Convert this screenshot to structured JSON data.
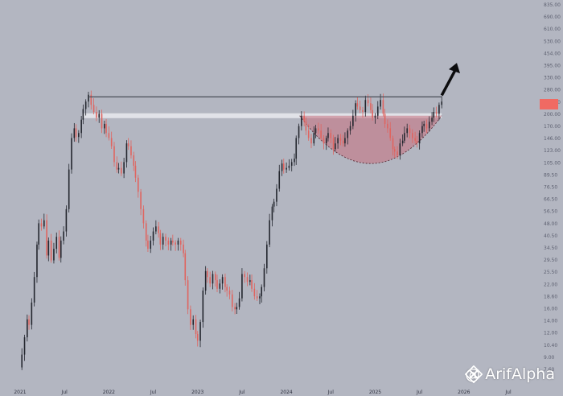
{
  "chart_data": {
    "type": "candlestick",
    "y_scale": "log",
    "ylim": [
      7.6,
      835.0
    ],
    "y_ticks": [
      "835.00",
      "690.00",
      "610.00",
      "530.00",
      "454.00",
      "395.00",
      "330.00",
      "280.00",
      "235.00",
      "200.00",
      "170.00",
      "146.00",
      "123.00",
      "105.00",
      "89.50",
      "76.50",
      "66.50",
      "56.50",
      "48.00",
      "40.50",
      "34.50",
      "29.50",
      "25.50",
      "22.00",
      "18.60",
      "16.00",
      "14.00",
      "12.00",
      "10.40",
      "9.00",
      "7.60"
    ],
    "x_ticks": [
      "2021",
      "Jul",
      "2022",
      "Jul",
      "2023",
      "Jul",
      "2024",
      "Jul",
      "2025",
      "Jul",
      "2026",
      "Jul"
    ],
    "x_tick_dates": [
      2021.0,
      2021.5,
      2022.0,
      2022.5,
      2023.0,
      2023.5,
      2024.0,
      2024.5,
      2025.0,
      2025.5,
      2026.0,
      2026.5
    ],
    "current_price_tag": "",
    "resistance": {
      "value": 255.0,
      "from": 2021.78,
      "to": 2025.75
    },
    "support_zone": {
      "value": 200.0,
      "from": 2021.7,
      "to": 2025.75
    },
    "cup": {
      "from": 2024.15,
      "to": 2025.75,
      "top": 200.0,
      "bottom": 108.0
    },
    "arrow": {
      "from_date": 2025.75,
      "from_value": 260.0,
      "to_date": 2025.92,
      "to_value": 395.0
    },
    "price_path": [
      [
        2021.0,
        7.8
      ],
      [
        2021.02,
        9.2
      ],
      [
        2021.05,
        11.5
      ],
      [
        2021.08,
        14.5
      ],
      [
        2021.1,
        13.5
      ],
      [
        2021.13,
        18.0
      ],
      [
        2021.16,
        25.0
      ],
      [
        2021.19,
        38.0
      ],
      [
        2021.21,
        50.0
      ],
      [
        2021.24,
        48.0
      ],
      [
        2021.27,
        52.0
      ],
      [
        2021.3,
        33.0
      ],
      [
        2021.32,
        40.0
      ],
      [
        2021.35,
        31.0
      ],
      [
        2021.38,
        36.0
      ],
      [
        2021.41,
        42.0
      ],
      [
        2021.44,
        32.0
      ],
      [
        2021.46,
        40.0
      ],
      [
        2021.49,
        45.0
      ],
      [
        2021.52,
        60.0
      ],
      [
        2021.55,
        100.0
      ],
      [
        2021.58,
        150.0
      ],
      [
        2021.61,
        170.0
      ],
      [
        2021.63,
        152.0
      ],
      [
        2021.66,
        160.0
      ],
      [
        2021.69,
        190.0
      ],
      [
        2021.71,
        218.0
      ],
      [
        2021.74,
        240.0
      ],
      [
        2021.77,
        262.0
      ],
      [
        2021.8,
        230.0
      ],
      [
        2021.83,
        210.0
      ],
      [
        2021.86,
        195.0
      ],
      [
        2021.89,
        205.0
      ],
      [
        2021.92,
        170.0
      ],
      [
        2021.95,
        180.0
      ],
      [
        2021.97,
        160.0
      ],
      [
        2022.0,
        150.0
      ],
      [
        2022.03,
        135.0
      ],
      [
        2022.06,
        110.0
      ],
      [
        2022.09,
        100.0
      ],
      [
        2022.11,
        102.0
      ],
      [
        2022.14,
        95.0
      ],
      [
        2022.17,
        110.0
      ],
      [
        2022.2,
        140.0
      ],
      [
        2022.22,
        135.0
      ],
      [
        2022.25,
        120.0
      ],
      [
        2022.28,
        105.0
      ],
      [
        2022.3,
        90.0
      ],
      [
        2022.33,
        75.0
      ],
      [
        2022.36,
        60.0
      ],
      [
        2022.39,
        50.0
      ],
      [
        2022.42,
        40.0
      ],
      [
        2022.44,
        36.0
      ],
      [
        2022.47,
        40.0
      ],
      [
        2022.5,
        45.0
      ],
      [
        2022.53,
        48.0
      ],
      [
        2022.56,
        44.0
      ],
      [
        2022.58,
        38.0
      ],
      [
        2022.61,
        42.0
      ],
      [
        2022.64,
        40.0
      ],
      [
        2022.67,
        38.0
      ],
      [
        2022.7,
        40.0
      ],
      [
        2022.72,
        39.0
      ],
      [
        2022.75,
        38.0
      ],
      [
        2022.78,
        40.0
      ],
      [
        2022.81,
        38.0
      ],
      [
        2022.84,
        34.0
      ],
      [
        2022.86,
        24.0
      ],
      [
        2022.89,
        16.5
      ],
      [
        2022.92,
        13.5
      ],
      [
        2022.95,
        14.5
      ],
      [
        2022.98,
        12.0
      ],
      [
        2023.0,
        11.0
      ],
      [
        2023.03,
        14.0
      ],
      [
        2023.06,
        21.0
      ],
      [
        2023.09,
        27.0
      ],
      [
        2023.11,
        25.0
      ],
      [
        2023.14,
        23.0
      ],
      [
        2023.17,
        26.0
      ],
      [
        2023.2,
        24.0
      ],
      [
        2023.22,
        21.5
      ],
      [
        2023.25,
        23.0
      ],
      [
        2023.28,
        25.0
      ],
      [
        2023.31,
        22.0
      ],
      [
        2023.33,
        21.0
      ],
      [
        2023.36,
        20.0
      ],
      [
        2023.39,
        17.0
      ],
      [
        2023.42,
        16.5
      ],
      [
        2023.44,
        17.0
      ],
      [
        2023.47,
        19.0
      ],
      [
        2023.5,
        26.0
      ],
      [
        2023.53,
        25.0
      ],
      [
        2023.56,
        23.5
      ],
      [
        2023.59,
        24.0
      ],
      [
        2023.61,
        21.5
      ],
      [
        2023.64,
        19.5
      ],
      [
        2023.67,
        19.0
      ],
      [
        2023.7,
        19.5
      ],
      [
        2023.72,
        22.0
      ],
      [
        2023.75,
        28.0
      ],
      [
        2023.78,
        38.0
      ],
      [
        2023.81,
        52.0
      ],
      [
        2023.84,
        62.0
      ],
      [
        2023.86,
        66.0
      ],
      [
        2023.89,
        78.0
      ],
      [
        2023.92,
        98.0
      ],
      [
        2023.95,
        108.0
      ],
      [
        2023.97,
        100.0
      ],
      [
        2024.0,
        102.0
      ],
      [
        2024.03,
        105.0
      ],
      [
        2024.06,
        110.0
      ],
      [
        2024.09,
        115.0
      ],
      [
        2024.11,
        150.0
      ],
      [
        2024.14,
        175.0
      ],
      [
        2024.17,
        200.0
      ],
      [
        2024.2,
        185.0
      ],
      [
        2024.22,
        165.0
      ],
      [
        2024.25,
        150.0
      ],
      [
        2024.28,
        140.0
      ],
      [
        2024.31,
        160.0
      ],
      [
        2024.33,
        170.0
      ],
      [
        2024.36,
        165.0
      ],
      [
        2024.39,
        150.0
      ],
      [
        2024.42,
        140.0
      ],
      [
        2024.45,
        150.0
      ],
      [
        2024.47,
        160.0
      ],
      [
        2024.5,
        150.0
      ],
      [
        2024.53,
        130.0
      ],
      [
        2024.55,
        140.0
      ],
      [
        2024.58,
        150.0
      ],
      [
        2024.61,
        145.0
      ],
      [
        2024.64,
        140.0
      ],
      [
        2024.66,
        150.0
      ],
      [
        2024.69,
        165.0
      ],
      [
        2024.72,
        175.0
      ],
      [
        2024.75,
        200.0
      ],
      [
        2024.78,
        235.0
      ],
      [
        2024.8,
        225.0
      ],
      [
        2024.83,
        215.0
      ],
      [
        2024.86,
        210.0
      ],
      [
        2024.89,
        245.0
      ],
      [
        2024.92,
        235.0
      ],
      [
        2024.95,
        215.0
      ],
      [
        2024.97,
        195.0
      ],
      [
        2025.0,
        200.0
      ],
      [
        2025.03,
        225.0
      ],
      [
        2025.06,
        245.0
      ],
      [
        2025.09,
        205.0
      ],
      [
        2025.11,
        180.0
      ],
      [
        2025.14,
        170.0
      ],
      [
        2025.17,
        150.0
      ],
      [
        2025.2,
        130.0
      ],
      [
        2025.22,
        126.0
      ],
      [
        2025.25,
        120.0
      ],
      [
        2025.28,
        140.0
      ],
      [
        2025.31,
        145.0
      ],
      [
        2025.33,
        160.0
      ],
      [
        2025.36,
        170.0
      ],
      [
        2025.39,
        160.0
      ],
      [
        2025.42,
        150.0
      ],
      [
        2025.45,
        145.0
      ],
      [
        2025.47,
        140.0
      ],
      [
        2025.5,
        160.0
      ],
      [
        2025.53,
        175.0
      ],
      [
        2025.55,
        180.0
      ],
      [
        2025.58,
        170.0
      ],
      [
        2025.61,
        185.0
      ],
      [
        2025.64,
        195.0
      ],
      [
        2025.66,
        210.0
      ],
      [
        2025.69,
        205.0
      ],
      [
        2025.72,
        230.0
      ],
      [
        2025.75,
        240.0
      ]
    ]
  },
  "watermark": {
    "handle": "@ ArifAlpha"
  },
  "colors": {
    "background": "#b3b6c1",
    "bull": "#23262e",
    "bear": "#e0645f",
    "cup_fill": "#c66f7d",
    "resistance": "#4a4d58",
    "support": "#e6e7ec",
    "price_tag": "#f06a63"
  }
}
